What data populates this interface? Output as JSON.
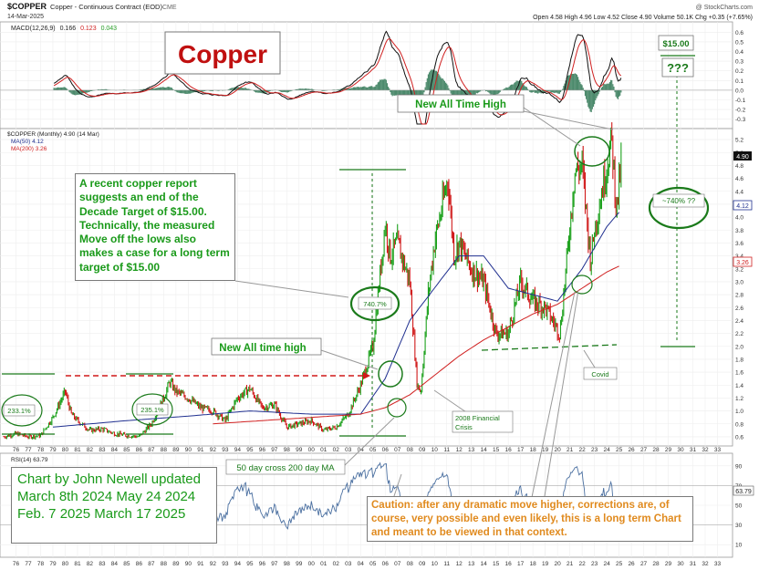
{
  "header": {
    "symbol": "$COPPER",
    "description": "Copper - Continuous Contract (EOD)",
    "exchange": "CME",
    "date": "14-Mar-2025",
    "source": "@ StockCharts.com",
    "quote": "Open 4.58  High 4.96  Low 4.52  Close 4.90  Volume 50.1K  Chg +0.35 (+7.65%)"
  },
  "title_box": {
    "text": "Copper"
  },
  "macd": {
    "label": "MACD(12,26,9)",
    "value1": "0.166",
    "value2": "0.123",
    "value3": "0.043",
    "ticks": [
      "0.6",
      "0.5",
      "0.4",
      "0.3",
      "0.2",
      "0.1",
      "0.0",
      "-0.1",
      "-0.2",
      "-0.3"
    ]
  },
  "price_panel": {
    "legend_symbol": "$COPPER (Monthly) 4.90 (14 Mar)",
    "legend_ma50": "MA(50) 4.12",
    "legend_ma200": "MA(200) 3.26",
    "ticks": [
      "5.2",
      "5.0",
      "4.8",
      "4.6",
      "4.4",
      "4.2",
      "4.0",
      "3.8",
      "3.6",
      "3.4",
      "3.2",
      "3.0",
      "2.8",
      "2.6",
      "2.4",
      "2.2",
      "2.0",
      "1.8",
      "1.6",
      "1.4",
      "1.2",
      "1.0",
      "0.8",
      "0.6"
    ],
    "last_price": "4.90",
    "ma50_tag": "4.12",
    "ma200_tag": "3.26"
  },
  "rsi": {
    "label": "RSI(14) 63.79",
    "ticks": [
      "90",
      "70",
      "50",
      "30",
      "10"
    ],
    "tag": "63.79"
  },
  "x_axis": {
    "labels": [
      "76",
      "77",
      "78",
      "79",
      "80",
      "81",
      "82",
      "83",
      "84",
      "85",
      "86",
      "87",
      "88",
      "89",
      "90",
      "91",
      "92",
      "93",
      "94",
      "95",
      "96",
      "97",
      "98",
      "99",
      "00",
      "01",
      "02",
      "03",
      "04",
      "05",
      "06",
      "07",
      "08",
      "09",
      "10",
      "11",
      "12",
      "13",
      "14",
      "15",
      "16",
      "17",
      "18",
      "19",
      "20",
      "21",
      "22",
      "23",
      "24",
      "25",
      "26",
      "27",
      "28",
      "29",
      "30",
      "31",
      "32",
      "33"
    ]
  },
  "annotations": {
    "report": "A recent copper report suggests an end of the Decade Target of $15.00. Technically, the measured Move off the lows also makes a case for a long term target of $15.00",
    "new_ath_low": "New All time high",
    "new_ath_top": "New All Time High",
    "target": "$15.00",
    "question": "???",
    "pct_target": "~740% ??",
    "pct_measured": "740.7%",
    "pct_233": "233.1%",
    "pct_235": "235.1%",
    "financial_crisis": "2008 Financial Crisis",
    "covid": "Covid",
    "cross": "50 day cross 200 day MA",
    "credit": "Chart by John Newell updated March 8th 2024 May 24 2024 Feb. 7 2025 March 17 2025",
    "caution": "Caution: after any dramatic move higher, corrections are, of course, very possible and even likely, this is a long term Chart and meant to be viewed in that context."
  },
  "colors": {
    "up": "#1aa01a",
    "down": "#d01818",
    "ma50": "#1f2f8f",
    "ma200": "#d02020",
    "green_annot": "#1a7a1a",
    "orange": "#e08a1e",
    "title_red": "#c01010"
  },
  "chart_data": {
    "type": "line",
    "title": "$COPPER (Monthly)",
    "x_unit": "year",
    "series": [
      {
        "name": "$COPPER",
        "x": [
          1975,
          1976,
          1977,
          1978,
          1979,
          1980,
          1980.5,
          1981,
          1982,
          1983,
          1984,
          1985,
          1986,
          1987,
          1988,
          1988.5,
          1989,
          1990,
          1991,
          1992,
          1993,
          1994,
          1995,
          1996,
          1997,
          1998,
          1999,
          2000,
          2001,
          2002,
          2003,
          2004,
          2005,
          2006,
          2006.4,
          2007,
          2008,
          2008.6,
          2008.9,
          2009.5,
          2010,
          2011.1,
          2011.6,
          2012,
          2013,
          2014,
          2015,
          2016,
          2017,
          2018,
          2019,
          2020.2,
          2020.6,
          2021.4,
          2022.0,
          2022.7,
          2023,
          2024.4,
          2024.8,
          2025.2
        ],
        "values": [
          0.6,
          0.65,
          0.6,
          0.62,
          0.9,
          1.3,
          0.95,
          0.85,
          0.7,
          0.72,
          0.65,
          0.62,
          0.6,
          0.8,
          1.2,
          1.45,
          1.3,
          1.2,
          1.05,
          1.0,
          0.85,
          1.2,
          1.35,
          1.05,
          1.1,
          0.75,
          0.8,
          0.85,
          0.7,
          0.75,
          0.95,
          1.4,
          2.0,
          3.9,
          3.4,
          3.6,
          3.0,
          1.4,
          1.3,
          2.8,
          3.6,
          4.6,
          3.4,
          3.6,
          3.2,
          3.0,
          2.2,
          2.2,
          3.0,
          2.7,
          2.6,
          2.2,
          3.0,
          4.7,
          4.8,
          3.3,
          3.8,
          5.2,
          4.1,
          4.9
        ]
      },
      {
        "name": "MA(50)",
        "x": [
          1979,
          1985,
          1990,
          1995,
          2000,
          2004,
          2006,
          2008,
          2010,
          2012,
          2014,
          2016,
          2018,
          2020,
          2022,
          2024,
          2025.2
        ],
        "values": [
          0.75,
          0.85,
          0.92,
          1.0,
          0.95,
          0.95,
          1.5,
          2.4,
          2.9,
          3.4,
          3.4,
          2.9,
          2.8,
          2.7,
          3.2,
          3.85,
          4.12
        ]
      },
      {
        "name": "MA(200)",
        "x": [
          1992,
          1996,
          2000,
          2004,
          2006,
          2008,
          2010,
          2012,
          2014,
          2016,
          2018,
          2020,
          2022,
          2024,
          2025.2
        ],
        "values": [
          0.8,
          0.85,
          0.9,
          0.95,
          1.05,
          1.25,
          1.55,
          1.85,
          2.1,
          2.3,
          2.5,
          2.65,
          2.9,
          3.15,
          3.26
        ]
      }
    ],
    "ylim": [
      0.5,
      5.3
    ],
    "xlim": [
      1975,
      2034
    ]
  }
}
